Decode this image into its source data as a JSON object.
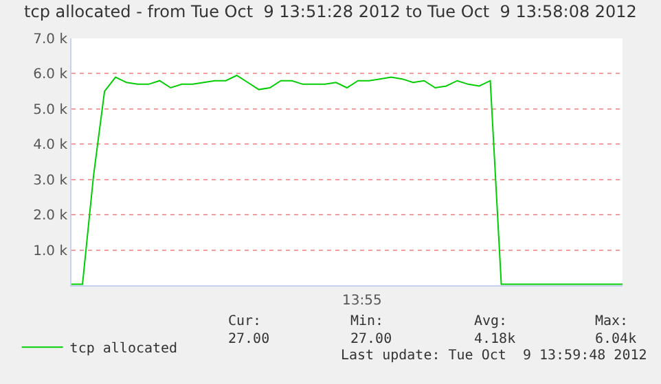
{
  "chart_data": {
    "type": "line",
    "title": "tcp allocated - from Tue Oct  9 13:51:28 2012 to Tue Oct  9 13:58:08 2012",
    "categories": [
      null,
      null,
      null,
      null,
      null,
      null,
      null,
      null,
      null,
      null,
      null,
      null,
      null,
      null,
      null,
      null,
      null,
      null,
      null,
      null,
      null,
      null,
      null,
      null,
      null,
      null,
      null,
      null,
      null,
      null,
      null,
      null,
      null,
      null,
      null,
      null,
      null,
      null,
      null,
      null,
      null,
      null,
      null,
      null,
      null,
      null,
      null,
      null,
      null,
      null,
      null
    ],
    "ylim": [
      0,
      7000
    ],
    "yticks": [
      {
        "value": 1000,
        "label": "1.0 k"
      },
      {
        "value": 2000,
        "label": "2.0 k"
      },
      {
        "value": 3000,
        "label": "3.0 k"
      },
      {
        "value": 4000,
        "label": "4.0 k"
      },
      {
        "value": 5000,
        "label": "5.0 k"
      },
      {
        "value": 6000,
        "label": "6.0 k"
      },
      {
        "value": 7000,
        "label": "7.0 k"
      }
    ],
    "grid": "y",
    "legend": "bottom left",
    "tick_labels": "y",
    "series": [
      {
        "name": "tcp allocated",
        "color": "#00cc00",
        "values": [
          27,
          27,
          3100,
          5500,
          5900,
          5750,
          5700,
          5700,
          5800,
          5600,
          5700,
          5700,
          5750,
          5800,
          5800,
          5950,
          5750,
          5550,
          5600,
          5800,
          5800,
          5700,
          5700,
          5700,
          5750,
          5600,
          5800,
          5800,
          5850,
          5900,
          5850,
          5750,
          5800,
          5600,
          5650,
          5800,
          5700,
          5650,
          5800,
          27,
          27,
          27,
          27,
          27,
          27,
          27,
          27,
          27,
          27,
          27,
          27
        ]
      }
    ],
    "annotations": [
      "13:55",
      "Cur:",
      "27.00",
      "Min:",
      "27.00",
      "Avg:",
      "4.18k",
      "Max:",
      "6.04k",
      "Last update: Tue Oct  9 13:59:48 2012"
    ]
  }
}
